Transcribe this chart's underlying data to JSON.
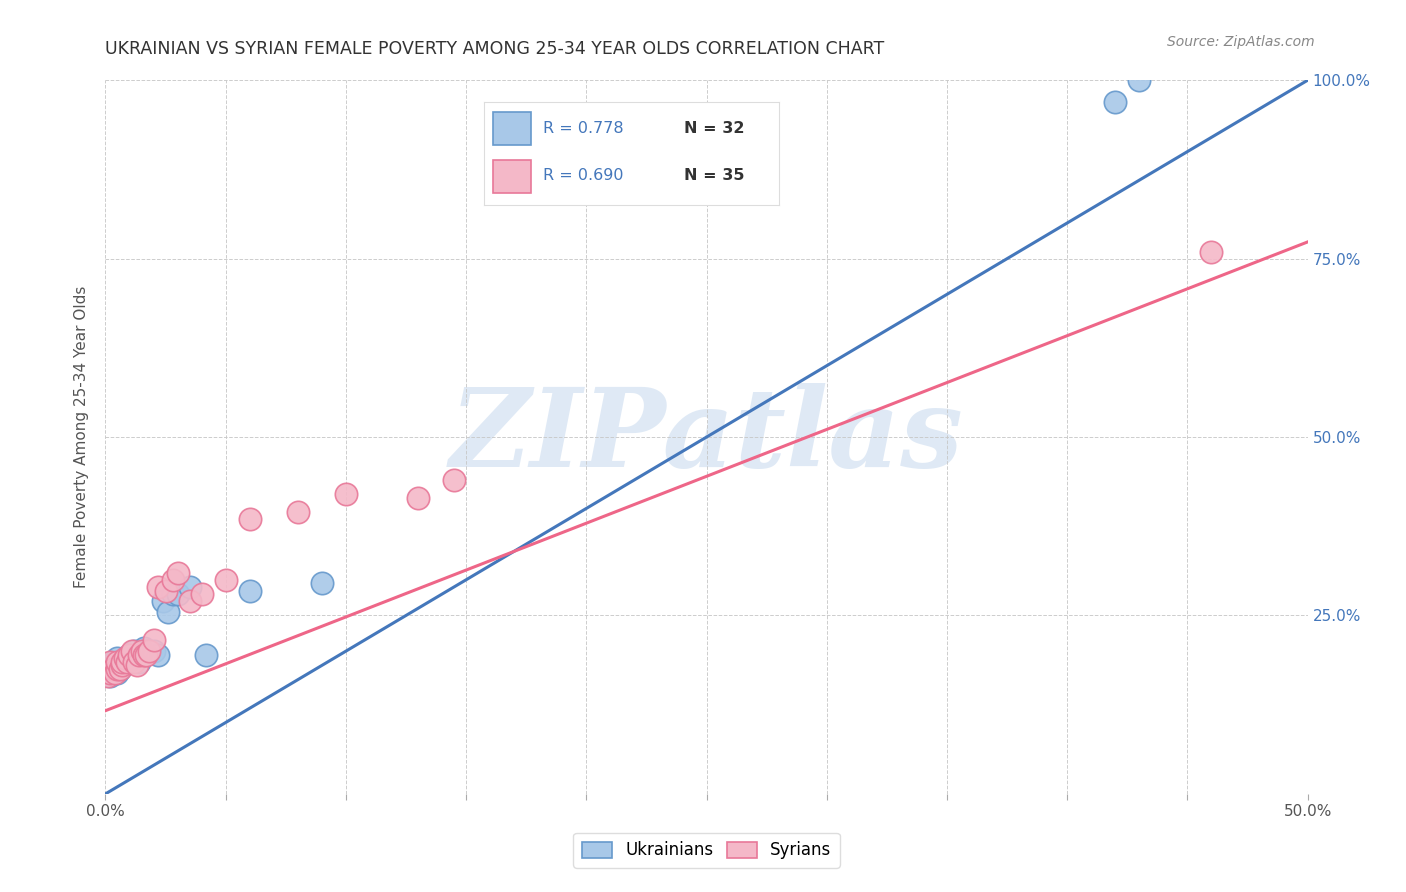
{
  "title": "UKRAINIAN VS SYRIAN FEMALE POVERTY AMONG 25-34 YEAR OLDS CORRELATION CHART",
  "source": "Source: ZipAtlas.com",
  "ylabel": "Female Poverty Among 25-34 Year Olds",
  "xlim": [
    0.0,
    0.5
  ],
  "ylim": [
    0.0,
    1.0
  ],
  "xticks": [
    0.0,
    0.05,
    0.1,
    0.15,
    0.2,
    0.25,
    0.3,
    0.35,
    0.4,
    0.45,
    0.5
  ],
  "yticks": [
    0.0,
    0.25,
    0.5,
    0.75,
    1.0
  ],
  "ukr_color": "#A8C8E8",
  "ukr_edge_color": "#6699CC",
  "syr_color": "#F4B8C8",
  "syr_edge_color": "#E87898",
  "ukr_line_color": "#4477BB",
  "syr_line_color": "#EE6688",
  "ukr_R": 0.778,
  "ukr_N": 32,
  "syr_R": 0.69,
  "syr_N": 35,
  "watermark_text": "ZIPatlas",
  "background_color": "#ffffff",
  "grid_color": "#c8c8c8",
  "right_tick_color": "#4477BB",
  "ukr_scatter_x": [
    0.001,
    0.002,
    0.003,
    0.003,
    0.004,
    0.005,
    0.005,
    0.006,
    0.007,
    0.008,
    0.009,
    0.01,
    0.011,
    0.012,
    0.013,
    0.014,
    0.015,
    0.016,
    0.017,
    0.018,
    0.02,
    0.022,
    0.024,
    0.026,
    0.028,
    0.03,
    0.035,
    0.042,
    0.06,
    0.09,
    0.42,
    0.43
  ],
  "ukr_scatter_y": [
    0.175,
    0.165,
    0.17,
    0.185,
    0.175,
    0.17,
    0.19,
    0.175,
    0.18,
    0.185,
    0.19,
    0.195,
    0.195,
    0.2,
    0.19,
    0.185,
    0.2,
    0.205,
    0.2,
    0.2,
    0.2,
    0.195,
    0.27,
    0.255,
    0.28,
    0.28,
    0.29,
    0.195,
    0.285,
    0.295,
    0.97,
    1.0
  ],
  "syr_scatter_x": [
    0.001,
    0.002,
    0.002,
    0.003,
    0.004,
    0.005,
    0.005,
    0.006,
    0.007,
    0.007,
    0.008,
    0.009,
    0.01,
    0.011,
    0.012,
    0.013,
    0.014,
    0.015,
    0.016,
    0.017,
    0.018,
    0.02,
    0.022,
    0.025,
    0.028,
    0.03,
    0.035,
    0.04,
    0.05,
    0.06,
    0.08,
    0.1,
    0.13,
    0.145,
    0.46
  ],
  "syr_scatter_y": [
    0.165,
    0.17,
    0.185,
    0.175,
    0.17,
    0.175,
    0.185,
    0.175,
    0.18,
    0.185,
    0.19,
    0.185,
    0.195,
    0.2,
    0.185,
    0.18,
    0.195,
    0.2,
    0.195,
    0.195,
    0.2,
    0.215,
    0.29,
    0.285,
    0.3,
    0.31,
    0.27,
    0.28,
    0.3,
    0.385,
    0.395,
    0.42,
    0.415,
    0.44,
    0.76
  ],
  "ukr_line_x": [
    -0.005,
    0.505
  ],
  "ukr_line_y": [
    -0.01,
    1.01
  ],
  "syr_line_x": [
    -0.005,
    0.505
  ],
  "syr_line_y": [
    0.11,
    0.78
  ]
}
